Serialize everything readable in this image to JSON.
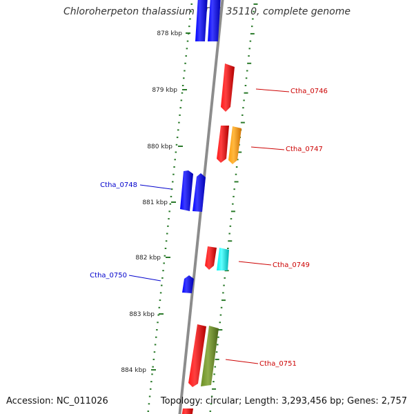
{
  "title": "Chloroherpeton thalassium ATCC 35110, complete genome",
  "footer": {
    "accession": "Accession: NC_011026",
    "summary": "Topology: circular; Length: 3,293,456 bp; Genes: 2,757"
  },
  "ruler_labels": [
    "878 kbp",
    "879 kbp",
    "880 kbp",
    "881 kbp",
    "882 kbp",
    "883 kbp",
    "884 kbp"
  ],
  "colors": {
    "forward_strand": "#0000ee",
    "reverse_strand": "#ee0000",
    "cds_orange": "#ff9900",
    "cds_cyan": "#00eeee",
    "cds_olive": "#6b8e23",
    "ticks": "#2a7a2a",
    "backbone": "#8c8c8c"
  },
  "gene_labels": [
    {
      "name": "Ctha_0746",
      "side": "right",
      "color": "#cc0000"
    },
    {
      "name": "Ctha_0747",
      "side": "right",
      "color": "#cc0000"
    },
    {
      "name": "Ctha_0748",
      "side": "left",
      "color": "#0000cc"
    },
    {
      "name": "Ctha_0749",
      "side": "right",
      "color": "#cc0000"
    },
    {
      "name": "Ctha_0750",
      "side": "left",
      "color": "#0000cc"
    },
    {
      "name": "Ctha_0751",
      "side": "right",
      "color": "#cc0000"
    }
  ]
}
